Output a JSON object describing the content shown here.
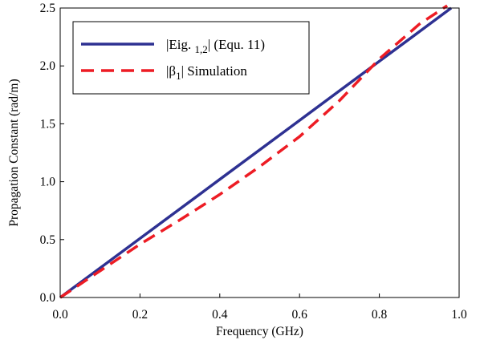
{
  "chart_data": {
    "type": "line",
    "title": "",
    "xlabel": "Frequency (GHz)",
    "ylabel": "Propagation Constant (rad/m)",
    "xlim": [
      0.0,
      1.0
    ],
    "ylim": [
      0.0,
      2.5
    ],
    "xticks": [
      "0.0",
      "0.2",
      "0.4",
      "0.6",
      "0.8",
      "1.0"
    ],
    "yticks": [
      "0.0",
      "0.5",
      "1.0",
      "1.5",
      "2.0",
      "2.5"
    ],
    "grid": false,
    "legend_position": "top-left",
    "series": [
      {
        "name": "|Eig. 1,2| (Equ. 11)",
        "legend_main": "|Eig. ",
        "legend_sub": "1,2",
        "legend_tail": "| (Equ. 11)",
        "color": "#2e3192",
        "style": "solid",
        "x": [
          0.0,
          0.2,
          0.4,
          0.6,
          0.8,
          0.98
        ],
        "y": [
          0.0,
          0.51,
          1.02,
          1.53,
          2.04,
          2.5
        ]
      },
      {
        "name": "|β1| Simulation",
        "legend_main": "|β",
        "legend_sub": "1",
        "legend_tail": "| Simulation",
        "color": "#ed1c24",
        "style": "dashed",
        "x": [
          0.0,
          0.1,
          0.2,
          0.3,
          0.4,
          0.5,
          0.6,
          0.7,
          0.75,
          0.8,
          0.9,
          0.97
        ],
        "y": [
          0.0,
          0.23,
          0.46,
          0.67,
          0.89,
          1.13,
          1.39,
          1.7,
          1.88,
          2.06,
          2.36,
          2.52
        ]
      }
    ]
  }
}
